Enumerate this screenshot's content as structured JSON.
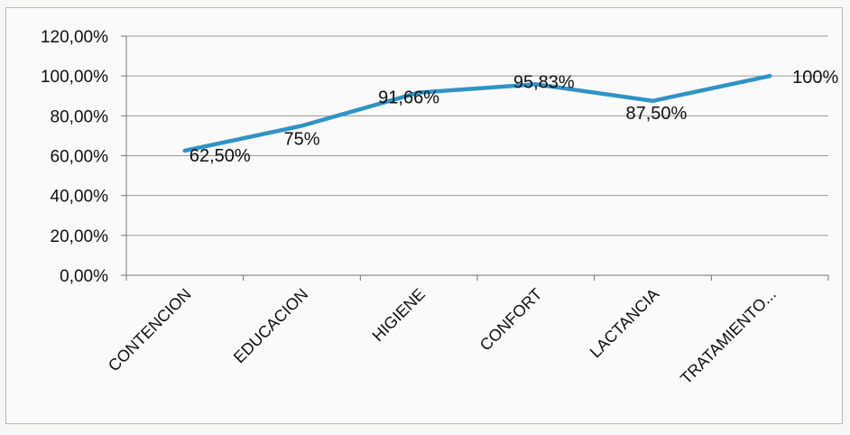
{
  "chart_data": {
    "type": "line",
    "categories": [
      "CONTENCION",
      "EDUCACION",
      "HIGIENE",
      "CONFORT",
      "LACTANCIA",
      "TRATAMIENTO..."
    ],
    "series": [
      {
        "values": [
          62.5,
          75,
          91.66,
          95.83,
          87.5,
          100
        ],
        "labels": [
          "62,50%",
          "75%",
          "91,66%",
          "95,83%",
          "87,50%",
          "100%"
        ],
        "color": "#2f93c6"
      }
    ],
    "y_ticks": [
      "0,00%",
      "20,00%",
      "40,00%",
      "60,00%",
      "80,00%",
      "100,00%",
      "120,00%"
    ],
    "ylim": [
      0,
      120
    ],
    "grid": true,
    "legend": "none"
  }
}
